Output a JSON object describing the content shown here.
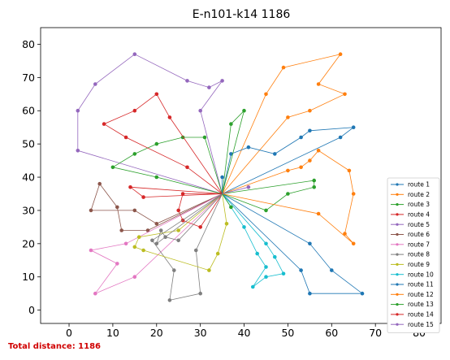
{
  "chart_data": {
    "type": "line",
    "title": "E-n101-k14 1186",
    "xlabel": "",
    "ylabel": "",
    "xlim": [
      -6.5,
      85
    ],
    "ylim": [
      -4,
      85
    ],
    "xticks": [
      0,
      10,
      20,
      30,
      40,
      50,
      60,
      70,
      80
    ],
    "yticks": [
      0,
      10,
      20,
      30,
      40,
      50,
      60,
      70,
      80
    ],
    "grid": false,
    "legend_position": "bottom-right",
    "depot": [
      35,
      35
    ],
    "series": [
      {
        "name": "route 1",
        "color": "#1f77b4",
        "points": [
          [
            35,
            35
          ],
          [
            55,
            20
          ],
          [
            60,
            12
          ],
          [
            67,
            5
          ],
          [
            55,
            5
          ],
          [
            53,
            12
          ],
          [
            35,
            35
          ]
        ]
      },
      {
        "name": "route 2",
        "color": "#ff7f0e",
        "points": [
          [
            35,
            35
          ],
          [
            45,
            65
          ],
          [
            49,
            73
          ],
          [
            62,
            77
          ],
          [
            57,
            68
          ],
          [
            63,
            65
          ],
          [
            55,
            60
          ],
          [
            50,
            58
          ],
          [
            35,
            35
          ]
        ]
      },
      {
        "name": "route 3",
        "color": "#2ca02c",
        "points": [
          [
            35,
            35
          ],
          [
            45,
            30
          ],
          [
            50,
            35
          ],
          [
            56,
            37
          ],
          [
            56,
            39
          ],
          [
            35,
            35
          ]
        ]
      },
      {
        "name": "route 4",
        "color": "#d62728",
        "points": [
          [
            35,
            35
          ],
          [
            30,
            25
          ],
          [
            26,
            27
          ],
          [
            25,
            30
          ],
          [
            26,
            35
          ],
          [
            35,
            35
          ]
        ]
      },
      {
        "name": "route 5",
        "color": "#9467bd",
        "points": [
          [
            35,
            35
          ],
          [
            30,
            60
          ],
          [
            35,
            69
          ],
          [
            32,
            67
          ],
          [
            27,
            69
          ],
          [
            15,
            77
          ],
          [
            6,
            68
          ],
          [
            2,
            60
          ],
          [
            2,
            48
          ],
          [
            35,
            35
          ]
        ]
      },
      {
        "name": "route 6",
        "color": "#8c564b",
        "points": [
          [
            35,
            35
          ],
          [
            20,
            26
          ],
          [
            15,
            30
          ],
          [
            5,
            30
          ],
          [
            7,
            38
          ],
          [
            11,
            31
          ],
          [
            12,
            24
          ],
          [
            18,
            24
          ],
          [
            35,
            35
          ]
        ]
      },
      {
        "name": "route 7",
        "color": "#e377c2",
        "points": [
          [
            35,
            35
          ],
          [
            13,
            20
          ],
          [
            5,
            18
          ],
          [
            11,
            14
          ],
          [
            6,
            5
          ],
          [
            15,
            10
          ],
          [
            35,
            35
          ]
        ]
      },
      {
        "name": "route 8",
        "color": "#7f7f7f",
        "points": [
          [
            35,
            35
          ],
          [
            29,
            18
          ],
          [
            30,
            5
          ],
          [
            23,
            3
          ],
          [
            24,
            12
          ],
          [
            19,
            21
          ],
          [
            35,
            35
          ]
        ]
      },
      {
        "name": "route 9",
        "color": "#bcbd22",
        "points": [
          [
            35,
            35
          ],
          [
            36,
            26
          ],
          [
            34,
            17
          ],
          [
            32,
            12
          ],
          [
            17,
            18
          ],
          [
            15,
            19
          ],
          [
            16,
            22
          ],
          [
            25,
            24
          ],
          [
            35,
            35
          ]
        ]
      },
      {
        "name": "route 10",
        "color": "#17becf",
        "points": [
          [
            35,
            35
          ],
          [
            40,
            25
          ],
          [
            43,
            17
          ],
          [
            45,
            13
          ],
          [
            42,
            7
          ],
          [
            45,
            10
          ],
          [
            49,
            11
          ],
          [
            47,
            16
          ],
          [
            45,
            20
          ],
          [
            35,
            35
          ]
        ]
      },
      {
        "name": "route 11",
        "color": "#1f77b4",
        "points": [
          [
            35,
            35
          ],
          [
            37,
            47
          ],
          [
            41,
            49
          ],
          [
            47,
            47
          ],
          [
            53,
            52
          ],
          [
            55,
            54
          ],
          [
            65,
            55
          ],
          [
            62,
            52
          ],
          [
            35,
            35
          ]
        ]
      },
      {
        "name": "route 12",
        "color": "#ff7f0e",
        "points": [
          [
            35,
            35
          ],
          [
            50,
            42
          ],
          [
            53,
            43
          ],
          [
            55,
            45
          ],
          [
            57,
            48
          ],
          [
            64,
            42
          ],
          [
            65,
            35
          ],
          [
            63,
            23
          ],
          [
            65,
            20
          ],
          [
            57,
            29
          ],
          [
            35,
            35
          ]
        ]
      },
      {
        "name": "route 13",
        "color": "#2ca02c",
        "points": [
          [
            35,
            35
          ],
          [
            31,
            52
          ],
          [
            26,
            52
          ],
          [
            20,
            50
          ],
          [
            15,
            47
          ],
          [
            10,
            43
          ],
          [
            20,
            40
          ],
          [
            35,
            35
          ]
        ]
      },
      {
        "name": "route 14",
        "color": "#d62728",
        "points": [
          [
            35,
            35
          ],
          [
            23,
            58
          ],
          [
            20,
            65
          ],
          [
            15,
            60
          ],
          [
            8,
            56
          ],
          [
            13,
            52
          ],
          [
            27,
            43
          ],
          [
            35,
            35
          ]
        ]
      },
      {
        "name": "route 15",
        "color": "#9467bd",
        "points": [
          [
            35,
            35
          ],
          [
            41,
            37
          ],
          [
            35,
            35
          ]
        ]
      },
      {
        "name": "",
        "color": "#2ca02c",
        "points": [
          [
            35,
            35
          ],
          [
            37,
            31
          ],
          [
            35,
            35
          ]
        ]
      },
      {
        "name": "",
        "color": "#2ca02c",
        "points": [
          [
            35,
            35
          ],
          [
            37,
            56
          ],
          [
            40,
            60
          ],
          [
            35,
            35
          ]
        ]
      },
      {
        "name": "",
        "color": "#d62728",
        "points": [
          [
            35,
            35
          ],
          [
            17,
            34
          ],
          [
            14,
            37
          ],
          [
            35,
            35
          ]
        ]
      },
      {
        "name": "",
        "color": "#7f7f7f",
        "points": [
          [
            35,
            35
          ],
          [
            20,
            20
          ],
          [
            21,
            24
          ],
          [
            22,
            22
          ],
          [
            25,
            21
          ],
          [
            35,
            35
          ]
        ]
      },
      {
        "name": "",
        "color": "#1f77b4",
        "points": [
          [
            35,
            35
          ],
          [
            35,
            40
          ],
          [
            35,
            35
          ]
        ]
      }
    ],
    "footer": "Total distance: 1186",
    "footer_color": "#d00000"
  }
}
